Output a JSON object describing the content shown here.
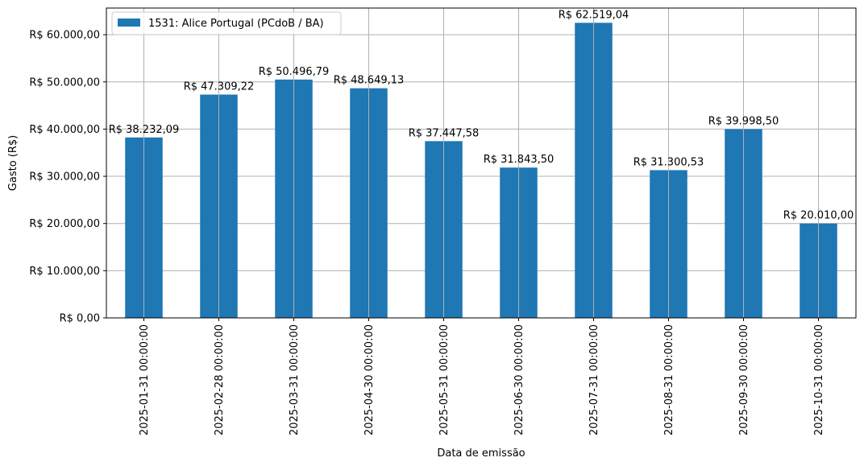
{
  "chart_data": {
    "type": "bar",
    "title": "",
    "xlabel": "Data de emissão",
    "ylabel": "Gasto (R$)",
    "categories": [
      "2025-01-31 00:00:00",
      "2025-02-28 00:00:00",
      "2025-03-31 00:00:00",
      "2025-04-30 00:00:00",
      "2025-05-31 00:00:00",
      "2025-06-30 00:00:00",
      "2025-07-31 00:00:00",
      "2025-08-31 00:00:00",
      "2025-09-30 00:00:00",
      "2025-10-31 00:00:00"
    ],
    "series": [
      {
        "name": "1531: Alice Portugal (PCdoB / BA)",
        "color": "#1f77b4",
        "values": [
          38232.09,
          47309.22,
          50496.79,
          48649.13,
          37447.58,
          31843.5,
          62519.04,
          31300.53,
          39998.5,
          20010.0
        ],
        "labels": [
          "R$ 38.232,09",
          "R$ 47.309,22",
          "R$ 50.496,79",
          "R$ 48.649,13",
          "R$ 37.447,58",
          "R$ 31.843,50",
          "R$ 62.519,04",
          "R$ 31.300,53",
          "R$ 39.998,50",
          "R$ 20.010,00"
        ]
      }
    ],
    "ylim": [
      0,
      65645
    ],
    "yticks": [
      0,
      10000,
      20000,
      30000,
      40000,
      50000,
      60000
    ],
    "ytick_labels": [
      "R$ 0,00",
      "R$ 10.000,00",
      "R$ 20.000,00",
      "R$ 30.000,00",
      "R$ 40.000,00",
      "R$ 50.000,00",
      "R$ 60.000,00"
    ],
    "grid": true,
    "legend_position": "top-left"
  }
}
